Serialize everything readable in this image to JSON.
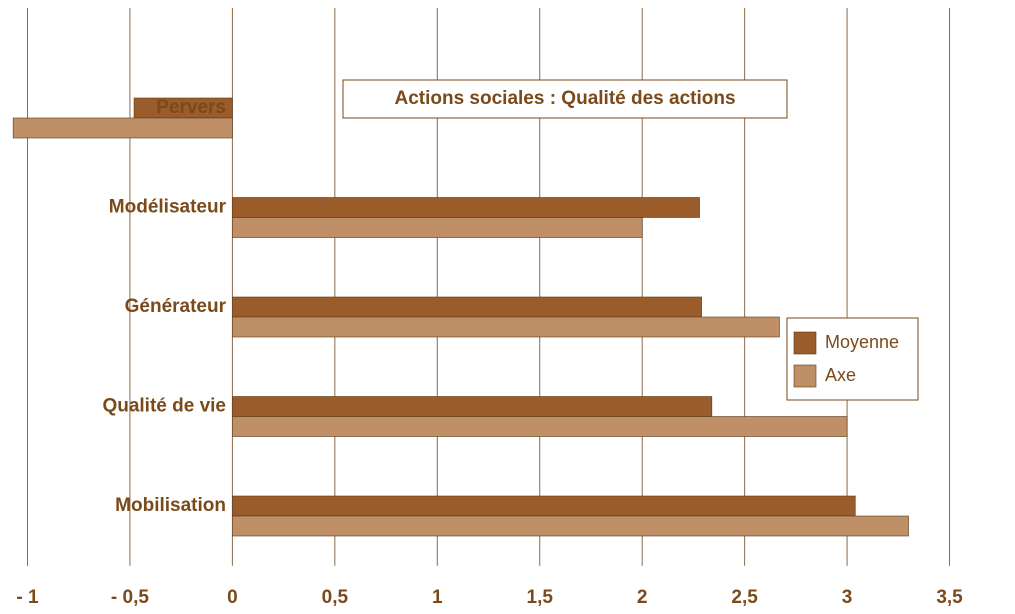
{
  "chart_data": {
    "type": "hbar",
    "title": "Actions sociales : Qualité des actions",
    "categories": [
      "Pervers",
      "Modélisateur",
      "Générateur",
      "Qualité de vie",
      "Mobilisation"
    ],
    "series": [
      {
        "name": "Moyenne",
        "color": "#9a5c2a",
        "values": [
          -0.48,
          2.28,
          2.29,
          2.34,
          3.04
        ]
      },
      {
        "name": "Axe",
        "color": "#bf9068",
        "values": [
          -1.07,
          2.0,
          2.67,
          3.0,
          3.3
        ]
      }
    ],
    "xlim": [
      -1.1,
      3.8
    ],
    "xticks": [
      {
        "value": -1,
        "label": "- 1"
      },
      {
        "value": -0.5,
        "label": "- 0,5"
      },
      0,
      {
        "value": 0.5,
        "label": "0,5"
      },
      1,
      {
        "value": 1.5,
        "label": "1,5"
      },
      2,
      {
        "value": 2.5,
        "label": "2,5"
      },
      3,
      {
        "value": 3.5,
        "label": "3,5"
      }
    ],
    "grid": true,
    "legend": "right"
  }
}
